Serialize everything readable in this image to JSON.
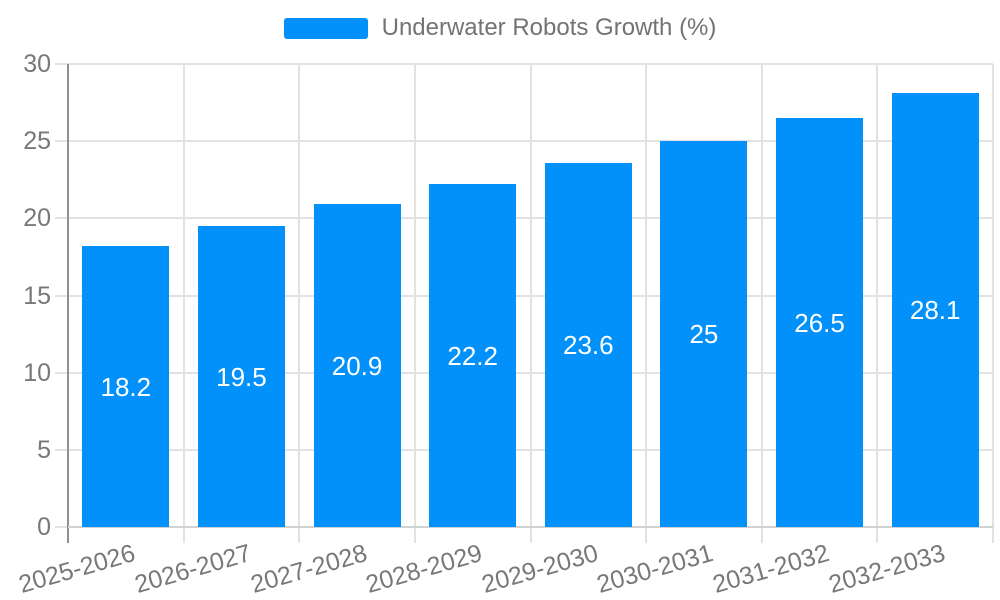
{
  "legend": {
    "label": "Underwater Robots Growth (%)",
    "swatch_color": "#0291fa"
  },
  "colors": {
    "bar": "#0291fa",
    "grid": "#e2e2e2",
    "y_axis_line": "#909090",
    "x_axis_line": "#d2d2d2",
    "tick_text": "#787878",
    "value_text": "#ffffff",
    "background": "#ffffff"
  },
  "chart_data": {
    "type": "bar",
    "title": "",
    "xlabel": "",
    "ylabel": "",
    "categories": [
      "2025-2026",
      "2026-2027",
      "2027-2028",
      "2028-2029",
      "2029-2030",
      "2030-2031",
      "2031-2032",
      "2032-2033"
    ],
    "series": [
      {
        "name": "Underwater Robots Growth (%)",
        "values": [
          18.2,
          19.5,
          20.9,
          22.2,
          23.6,
          25,
          26.5,
          28.1
        ],
        "value_labels": [
          "18.2",
          "19.5",
          "20.9",
          "22.2",
          "23.6",
          "25",
          "26.5",
          "28.1"
        ],
        "color": "#0291fa"
      }
    ],
    "ylim": [
      0,
      30
    ],
    "yticks": [
      30,
      25,
      20,
      15,
      10,
      5,
      0
    ],
    "grid": true,
    "legend_position": "top",
    "value_labels_inside": true
  }
}
